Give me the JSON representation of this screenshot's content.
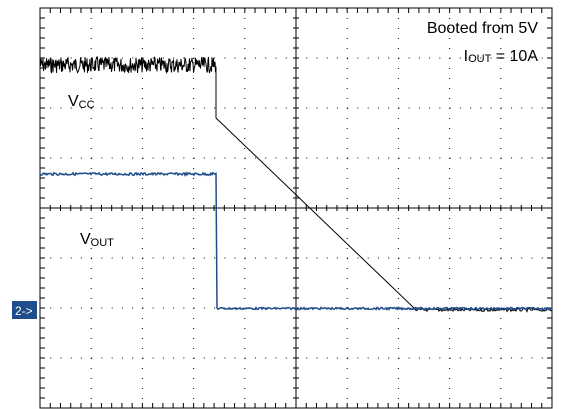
{
  "annotations": {
    "boot": "Booted from 5V",
    "iout": {
      "main": "I",
      "sub": "OUT",
      "rest": " = 10A"
    },
    "vcc": {
      "main": "V",
      "sub": "CC"
    },
    "vout": {
      "main": "V",
      "sub": "OUT"
    }
  },
  "channel_marker": "2->"
}
